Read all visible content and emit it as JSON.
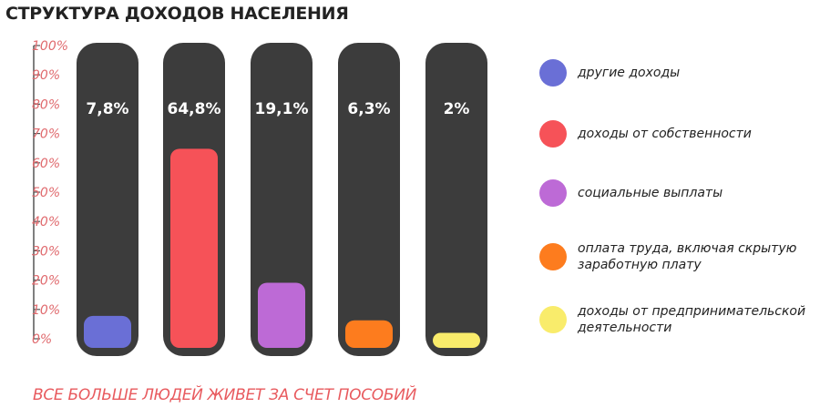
{
  "title": "СТРУКТУРА ДОХОДОВ НАСЕЛЕНИЯ",
  "footer": "ВСЕ БОЛЬШЕ ЛЮДЕЙ ЖИВЕТ ЗА СЧЕТ ПОСОБИЙ",
  "colors": {
    "track": "#3c3c3c",
    "axis": "#555555",
    "tick_label": "#e06a6e",
    "value_label": "#ffffff",
    "footer": "#e85a5e"
  },
  "chart_data": {
    "type": "bar",
    "title": "СТРУКТУРА ДОХОДОВ НАСЕЛЕНИЯ",
    "ylim": [
      0,
      100
    ],
    "y_ticks": [
      "0%",
      "10%",
      "20%",
      "30%",
      "40%",
      "50%",
      "60%",
      "70%",
      "80%",
      "90%",
      "100%"
    ],
    "grid": false,
    "legend_position": "right",
    "categories": [
      "другие доходы",
      "доходы от собственности",
      "социальные выплаты",
      "оплата труда, включая скрытую заработную плату",
      "доходы от предпринимательской деятельности"
    ],
    "values": [
      7.8,
      64.8,
      19.1,
      6.3,
      2
    ],
    "value_labels": [
      "7,8%",
      "64,8%",
      "19,1%",
      "6,3%",
      "2%"
    ],
    "series_colors": [
      "#6a6fd6",
      "#f65258",
      "#bd6ad6",
      "#fd7c1e",
      "#f9ec6b"
    ]
  },
  "legend": [
    {
      "label": "другие доходы",
      "color": "#6a6fd6"
    },
    {
      "label": "доходы от собственности",
      "color": "#f65258"
    },
    {
      "label": "социальные выплаты",
      "color": "#bd6ad6"
    },
    {
      "label": "оплата труда, включая скрытую заработную плату",
      "color": "#fd7c1e"
    },
    {
      "label": "доходы от предпринимательской деятельности",
      "color": "#f9ec6b"
    }
  ]
}
